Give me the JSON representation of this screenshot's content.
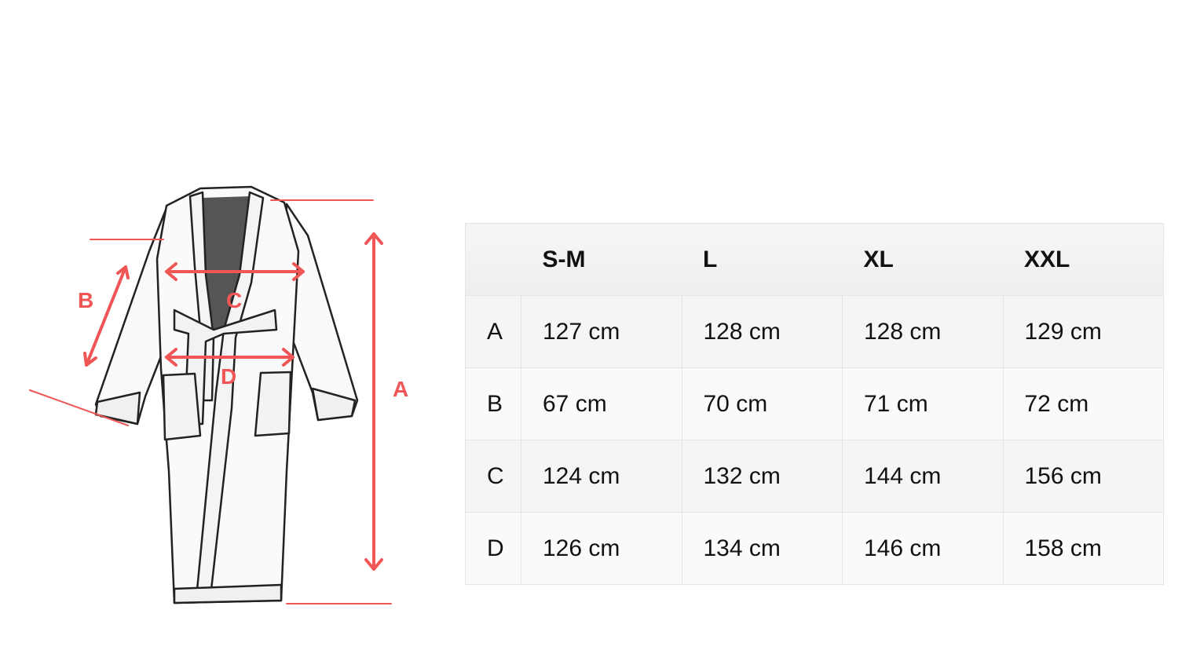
{
  "diagram": {
    "labels": [
      "A",
      "B",
      "C",
      "D"
    ],
    "accent_color": "#f05656"
  },
  "table": {
    "headers": [
      "",
      "S-M",
      "L",
      "XL",
      "XXL"
    ],
    "rows": [
      {
        "label": "A",
        "values": [
          "127 cm",
          "128 cm",
          "128 cm",
          "129 cm"
        ]
      },
      {
        "label": "B",
        "values": [
          "67 cm",
          "70 cm",
          "71 cm",
          "72 cm"
        ]
      },
      {
        "label": "C",
        "values": [
          "124 cm",
          "132 cm",
          "144 cm",
          "156 cm"
        ]
      },
      {
        "label": "D",
        "values": [
          "126 cm",
          "134 cm",
          "146 cm",
          "158 cm"
        ]
      }
    ]
  }
}
